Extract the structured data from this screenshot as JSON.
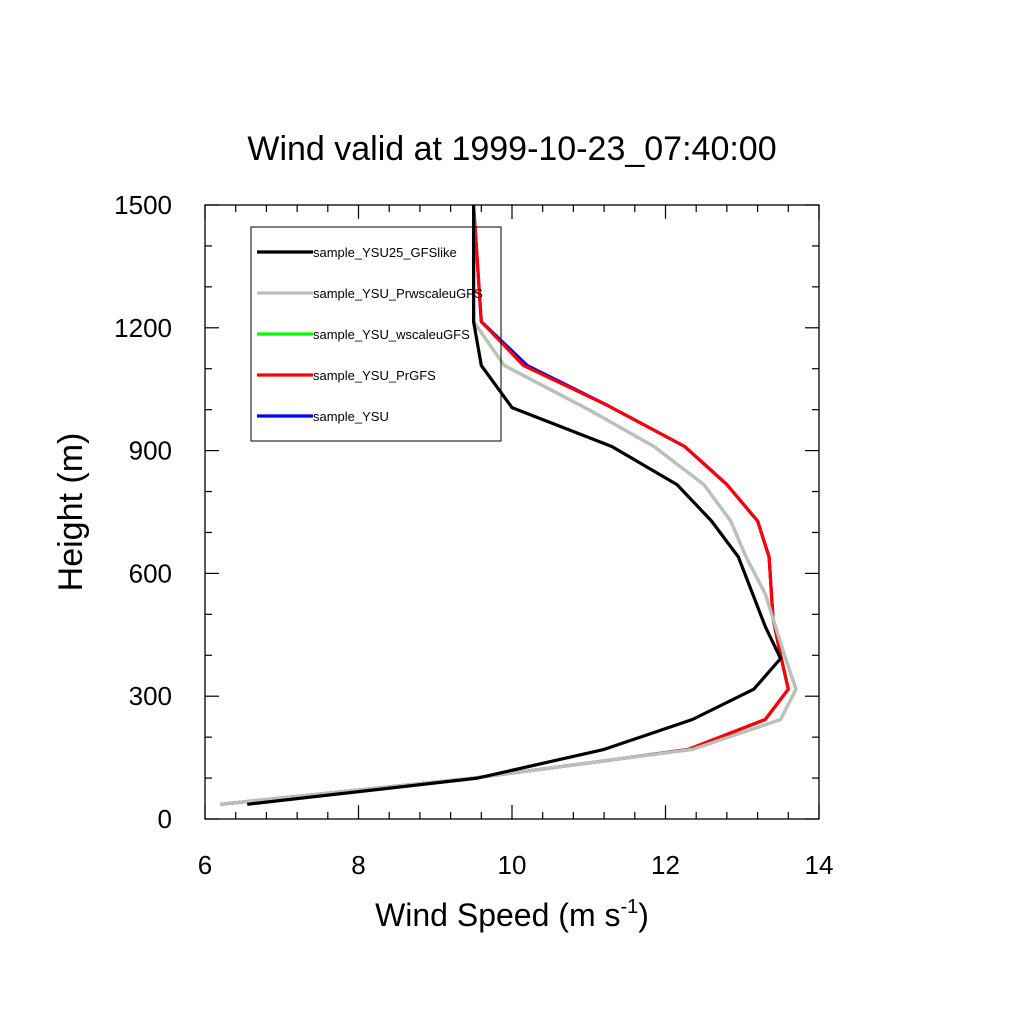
{
  "chart_data": {
    "type": "line",
    "title": "Wind valid at 1999-10-23_07:40:00",
    "xlabel": {
      "base": "Wind Speed (m s",
      "sup": "-1",
      "end": ")"
    },
    "ylabel": "Height (m)",
    "xlim": [
      6,
      14
    ],
    "ylim": [
      0,
      1500
    ],
    "x_ticks": [
      6,
      8,
      10,
      12,
      14
    ],
    "x_ticklabels": [
      "6",
      "8",
      "10",
      "12",
      "14"
    ],
    "y_ticks": [
      0,
      300,
      600,
      900,
      1200,
      1500
    ],
    "y_ticklabels": [
      "0",
      "300",
      "600",
      "900",
      "1200",
      "1500"
    ],
    "grid": false,
    "legend_position": "top-left",
    "series": [
      {
        "name": "sample_YSU",
        "color": "#0000ff",
        "points": [
          [
            6.2,
            36
          ],
          [
            9.5,
            100
          ],
          [
            11.2,
            142
          ],
          [
            12.3,
            170
          ],
          [
            13.3,
            243
          ],
          [
            13.6,
            317
          ],
          [
            13.5,
            400
          ],
          [
            13.4,
            490
          ],
          [
            13.35,
            640
          ],
          [
            13.2,
            728
          ],
          [
            12.8,
            817
          ],
          [
            12.25,
            910
          ],
          [
            11.25,
            1010
          ],
          [
            10.2,
            1108
          ],
          [
            9.6,
            1215
          ],
          [
            9.5,
            1500
          ]
        ]
      },
      {
        "name": "sample_YSU_PrGFS",
        "color": "#ff0000",
        "points": [
          [
            6.2,
            36
          ],
          [
            9.5,
            100
          ],
          [
            11.2,
            142
          ],
          [
            12.3,
            170
          ],
          [
            13.3,
            243
          ],
          [
            13.6,
            317
          ],
          [
            13.5,
            400
          ],
          [
            13.4,
            490
          ],
          [
            13.35,
            640
          ],
          [
            13.2,
            728
          ],
          [
            12.8,
            817
          ],
          [
            12.25,
            910
          ],
          [
            11.25,
            1010
          ],
          [
            10.15,
            1108
          ],
          [
            9.6,
            1215
          ],
          [
            9.5,
            1500
          ]
        ]
      },
      {
        "name": "sample_YSU_wscaleuGFS",
        "color": "#00ff00",
        "points": [
          [
            6.2,
            36
          ],
          [
            9.5,
            100
          ],
          [
            11.2,
            142
          ],
          [
            12.35,
            170
          ],
          [
            13.5,
            243
          ],
          [
            13.7,
            317
          ],
          [
            13.55,
            400
          ],
          [
            13.3,
            550
          ],
          [
            13.05,
            640
          ],
          [
            12.85,
            728
          ],
          [
            12.5,
            817
          ],
          [
            11.85,
            910
          ],
          [
            11.0,
            1000
          ],
          [
            9.9,
            1108
          ],
          [
            9.5,
            1215
          ],
          [
            9.5,
            1500
          ]
        ]
      },
      {
        "name": "sample_YSU_PrwscaleuGFS",
        "color": "#bebebe",
        "points": [
          [
            6.2,
            36
          ],
          [
            9.5,
            100
          ],
          [
            11.2,
            142
          ],
          [
            12.35,
            170
          ],
          [
            13.5,
            243
          ],
          [
            13.7,
            317
          ],
          [
            13.55,
            400
          ],
          [
            13.3,
            550
          ],
          [
            13.05,
            640
          ],
          [
            12.85,
            728
          ],
          [
            12.5,
            817
          ],
          [
            11.85,
            910
          ],
          [
            11.0,
            1000
          ],
          [
            9.9,
            1108
          ],
          [
            9.5,
            1215
          ],
          [
            9.5,
            1500
          ]
        ]
      },
      {
        "name": "sample_YSU25_GFSlike",
        "color": "#000000",
        "points": [
          [
            6.55,
            36
          ],
          [
            9.55,
            100
          ],
          [
            11.2,
            170
          ],
          [
            12.35,
            243
          ],
          [
            13.15,
            317
          ],
          [
            13.5,
            392
          ],
          [
            13.3,
            470
          ],
          [
            12.95,
            640
          ],
          [
            12.6,
            728
          ],
          [
            12.15,
            817
          ],
          [
            11.3,
            910
          ],
          [
            10.0,
            1005
          ],
          [
            9.6,
            1108
          ],
          [
            9.5,
            1215
          ],
          [
            9.5,
            1500
          ]
        ]
      }
    ],
    "legend": [
      {
        "label": "sample_YSU25_GFSlike",
        "color": "#000000"
      },
      {
        "label": "sample_YSU_PrwscaleuGFS",
        "color": "#bebebe"
      },
      {
        "label": "sample_YSU_wscaleuGFS",
        "color": "#00ff00"
      },
      {
        "label": "sample_YSU_PrGFS",
        "color": "#ff0000"
      },
      {
        "label": "sample_YSU",
        "color": "#0000ff"
      }
    ]
  }
}
